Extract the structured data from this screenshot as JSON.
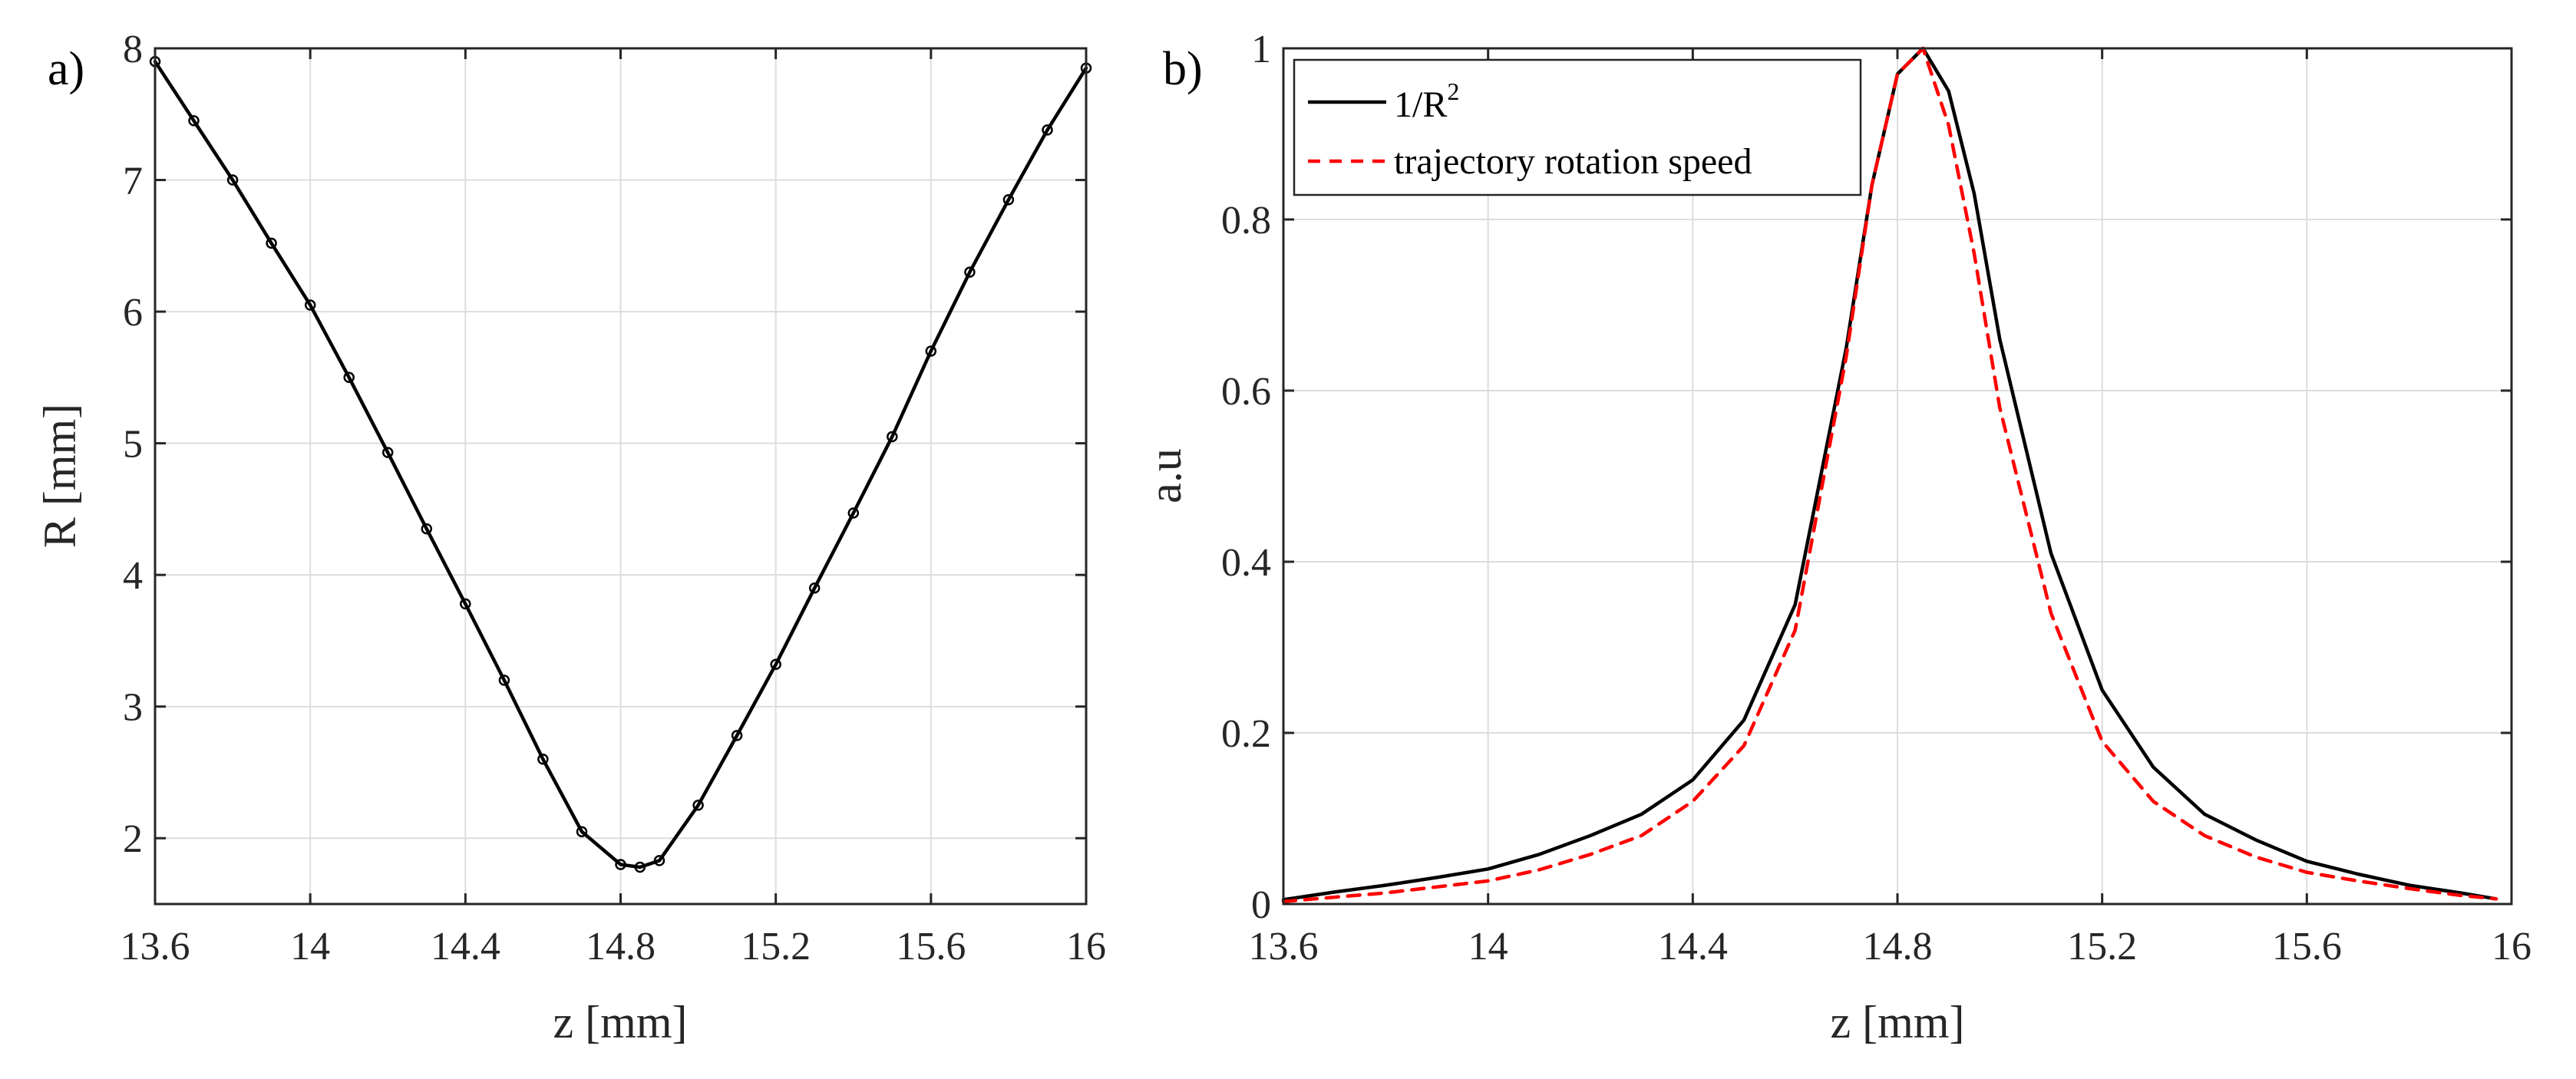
{
  "chart_data": [
    {
      "panel_label": "a)",
      "type": "line",
      "xlabel": "z [mm]",
      "ylabel": "R [mm]",
      "xlim": [
        13.6,
        16.0
      ],
      "ylim": [
        1.5,
        8.0
      ],
      "xticks": [
        13.6,
        14.0,
        14.4,
        14.8,
        15.2,
        15.6,
        16.0
      ],
      "xtick_labels": [
        "13.6",
        "14",
        "14.4",
        "14.8",
        "15.2",
        "15.6",
        "16"
      ],
      "yticks": [
        2,
        3,
        4,
        5,
        6,
        7,
        8
      ],
      "ytick_labels": [
        "2",
        "3",
        "4",
        "5",
        "6",
        "7",
        "8"
      ],
      "grid": true,
      "series": [
        {
          "name": "R",
          "color": "#000000",
          "marker": "circle",
          "x": [
            13.6,
            13.7,
            13.8,
            13.9,
            14.0,
            14.1,
            14.2,
            14.3,
            14.4,
            14.5,
            14.6,
            14.7,
            14.8,
            14.85,
            14.9,
            15.0,
            15.1,
            15.2,
            15.3,
            15.4,
            15.5,
            15.6,
            15.7,
            15.8,
            15.9,
            16.0
          ],
          "y": [
            7.9,
            7.45,
            7.0,
            6.52,
            6.05,
            5.5,
            4.93,
            4.35,
            3.78,
            3.2,
            2.6,
            2.05,
            1.8,
            1.78,
            1.83,
            2.25,
            2.78,
            3.32,
            3.9,
            4.47,
            5.05,
            5.7,
            6.3,
            6.85,
            7.38,
            7.85
          ]
        }
      ]
    },
    {
      "panel_label": "b)",
      "type": "line",
      "xlabel": "z [mm]",
      "ylabel": "a.u",
      "xlim": [
        13.6,
        16.0
      ],
      "ylim": [
        0,
        1
      ],
      "xticks": [
        13.6,
        14.0,
        14.4,
        14.8,
        15.2,
        15.6,
        16.0
      ],
      "xtick_labels": [
        "13.6",
        "14",
        "14.4",
        "14.8",
        "15.2",
        "15.6",
        "16"
      ],
      "yticks": [
        0,
        0.2,
        0.4,
        0.6,
        0.8,
        1.0
      ],
      "ytick_labels": [
        "0",
        "0.2",
        "0.4",
        "0.6",
        "0.8",
        "1"
      ],
      "grid": true,
      "legend": "top-left",
      "series": [
        {
          "name": "1/R",
          "name_superscript": "2",
          "color": "#000000",
          "dash": "solid",
          "x": [
            13.6,
            13.7,
            13.8,
            13.9,
            14.0,
            14.1,
            14.2,
            14.3,
            14.4,
            14.5,
            14.6,
            14.7,
            14.75,
            14.8,
            14.85,
            14.9,
            14.95,
            15.0,
            15.1,
            15.2,
            15.3,
            15.4,
            15.5,
            15.6,
            15.7,
            15.8,
            15.9,
            15.97
          ],
          "y": [
            0.005,
            0.014,
            0.022,
            0.031,
            0.041,
            0.058,
            0.08,
            0.105,
            0.145,
            0.215,
            0.35,
            0.65,
            0.84,
            0.97,
            1.0,
            0.95,
            0.83,
            0.66,
            0.41,
            0.25,
            0.16,
            0.105,
            0.075,
            0.05,
            0.035,
            0.022,
            0.013,
            0.006
          ]
        },
        {
          "name": "trajectory rotation speed",
          "color": "#ff0000",
          "dash": "dashed",
          "x": [
            13.6,
            13.7,
            13.8,
            13.9,
            14.0,
            14.1,
            14.2,
            14.3,
            14.4,
            14.5,
            14.6,
            14.7,
            14.75,
            14.8,
            14.85,
            14.9,
            14.95,
            15.0,
            15.1,
            15.2,
            15.3,
            15.4,
            15.5,
            15.6,
            15.7,
            15.8,
            15.9,
            15.97
          ],
          "y": [
            0.003,
            0.008,
            0.013,
            0.02,
            0.027,
            0.04,
            0.058,
            0.08,
            0.12,
            0.185,
            0.32,
            0.64,
            0.84,
            0.97,
            1.0,
            0.91,
            0.76,
            0.58,
            0.34,
            0.19,
            0.12,
            0.08,
            0.055,
            0.037,
            0.027,
            0.018,
            0.01,
            0.006
          ]
        }
      ]
    }
  ]
}
